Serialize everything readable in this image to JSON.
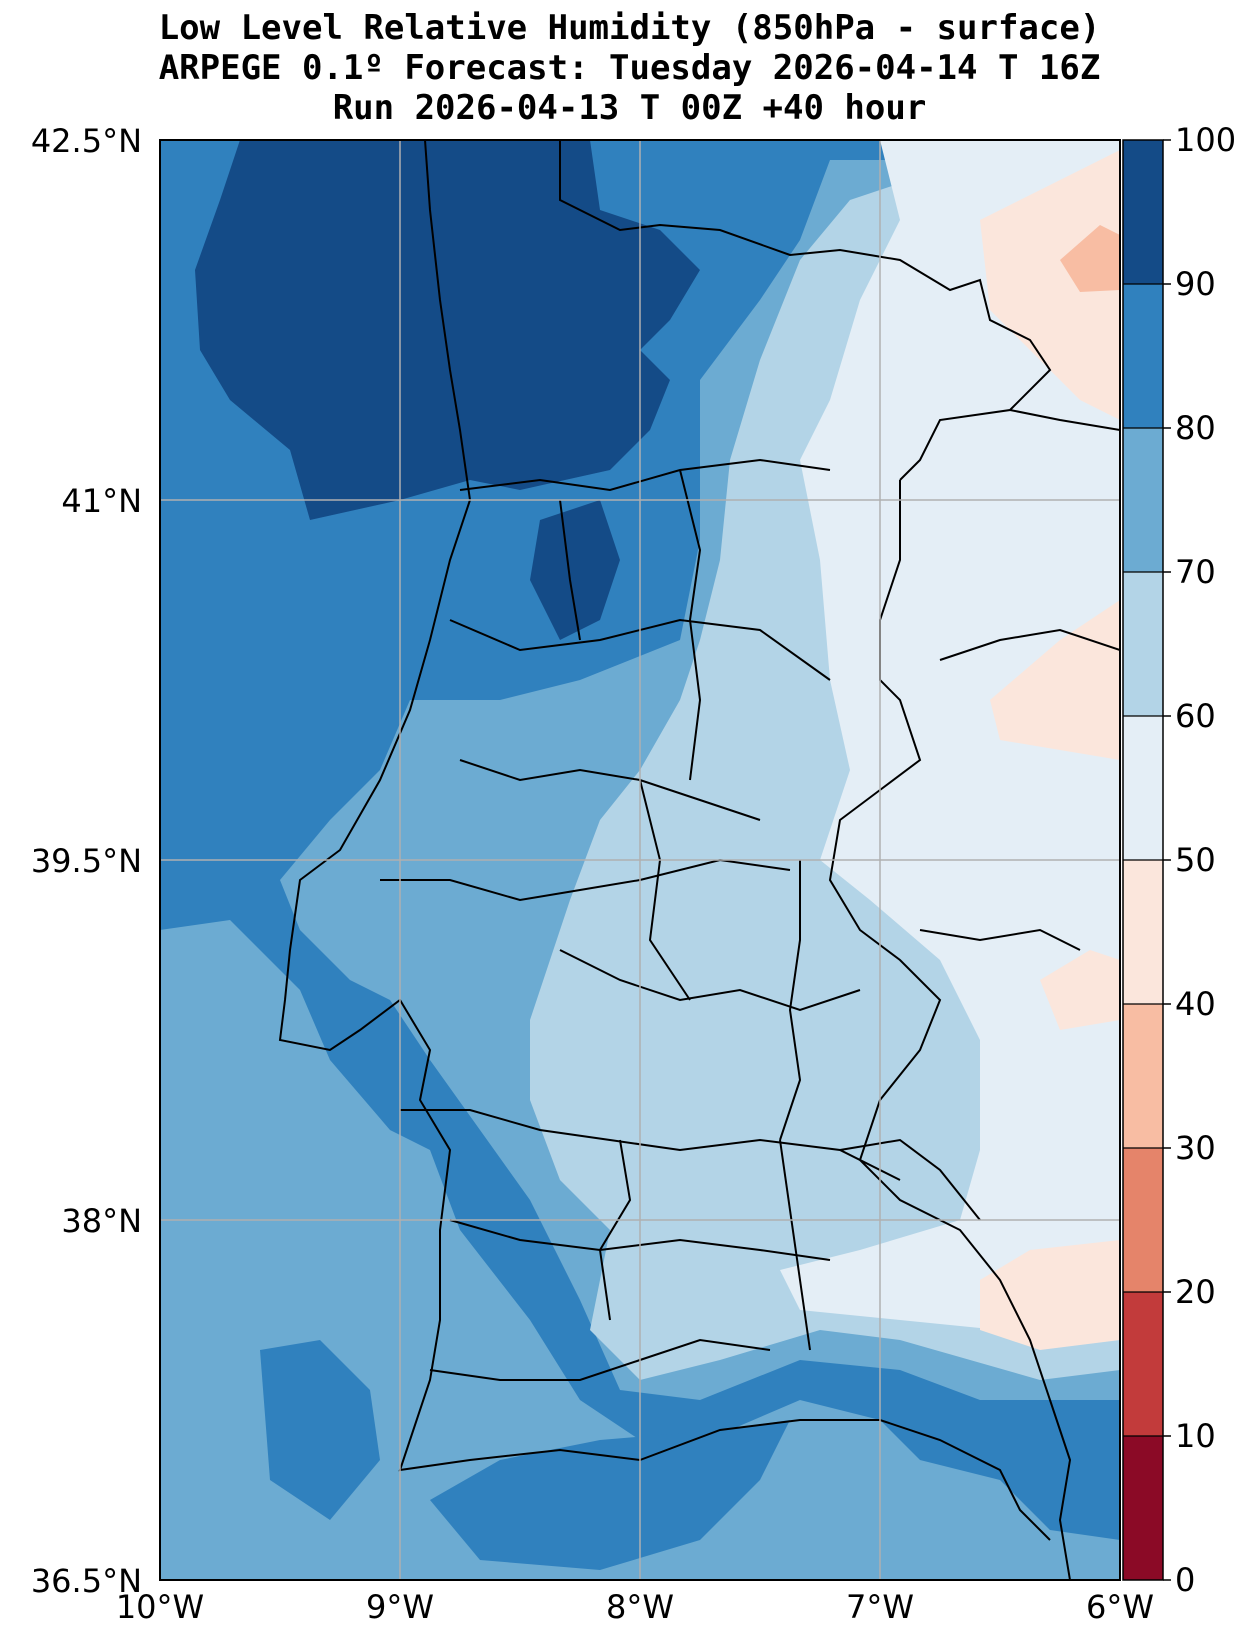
{
  "title": {
    "line1": "Low Level Relative Humidity (850hPa - surface)",
    "line2": "ARPEGE 0.1º Forecast: Tuesday 2026-04-14 T 16Z",
    "line3": "Run 2026-04-13 T 00Z +40 hour"
  },
  "map": {
    "lat_labels": [
      "42.5°N",
      "41°N",
      "39.5°N",
      "38°N",
      "36.5°N"
    ],
    "lon_labels": [
      "10°W",
      "9°W",
      "8°W",
      "7°W",
      "6°W"
    ]
  },
  "colorbar": {
    "ticks": [
      "0",
      "10",
      "20",
      "30",
      "40",
      "50",
      "60",
      "70",
      "80",
      "90",
      "100"
    ],
    "colors": [
      "#8b0a26",
      "#c23b3b",
      "#e5846a",
      "#f8bda3",
      "#fbe6dc",
      "#e4eef6",
      "#b3d4e7",
      "#6cabd2",
      "#3081be",
      "#144b87"
    ]
  },
  "colors": {
    "rh_90_100": "#144b87",
    "rh_80_90": "#3081be",
    "rh_70_80": "#6cabd2",
    "rh_60_70": "#b3d4e7",
    "rh_50_60": "#e4eef6",
    "rh_40_50": "#fbe6dc",
    "rh_30_40": "#f8bda3"
  }
}
